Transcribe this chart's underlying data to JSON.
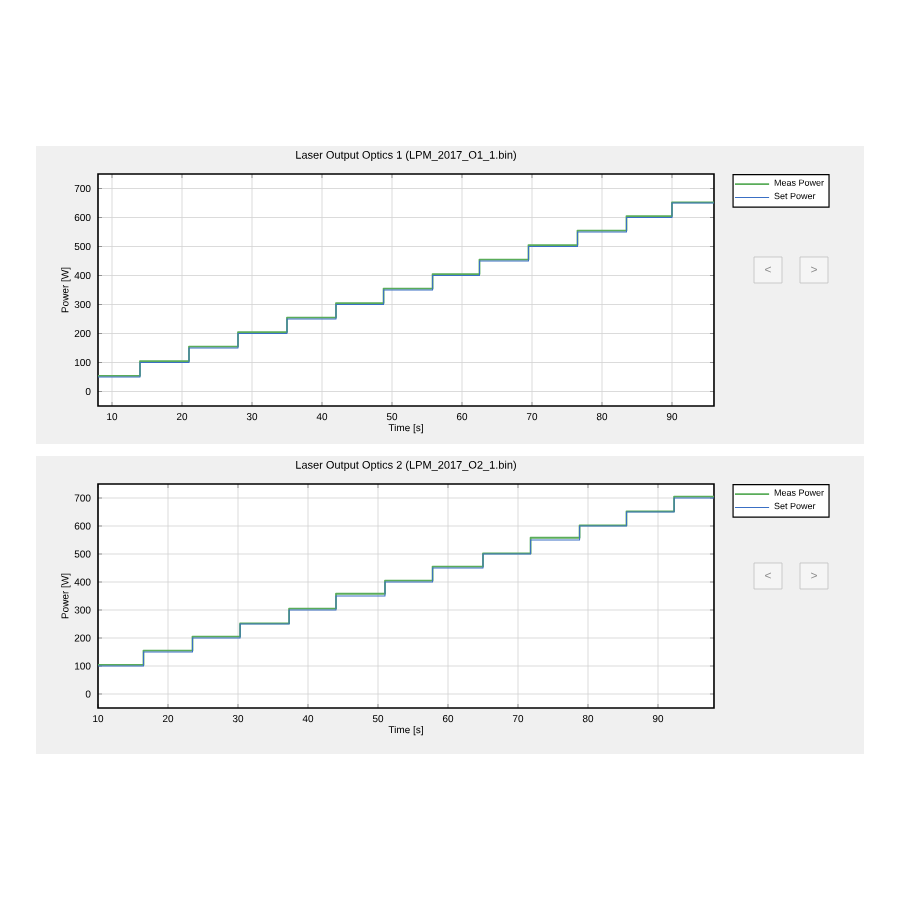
{
  "chart_data": [
    {
      "type": "step",
      "title": "Laser Output Optics 1 (LPM_2017_O1_1.bin)",
      "xlabel": "Time [s]",
      "ylabel": "Power [W]",
      "xlim": [
        8,
        96
      ],
      "ylim": [
        -50,
        750
      ],
      "xticks": [
        10,
        20,
        30,
        40,
        50,
        60,
        70,
        80,
        90
      ],
      "yticks": [
        0,
        100,
        200,
        300,
        400,
        500,
        600,
        700
      ],
      "grid": true,
      "legend": "top right",
      "annotations": [
        "<",
        ">"
      ],
      "series": [
        {
          "name": "Meas Power",
          "color": "#5aac5a",
          "x": [
            8,
            14,
            21,
            28,
            35,
            42,
            48.8,
            55.8,
            62.5,
            69.5,
            76.5,
            83.5,
            90,
            96
          ],
          "values": [
            54,
            105,
            155,
            205,
            255,
            305,
            355,
            405,
            455,
            505,
            555,
            605,
            652,
            652
          ]
        },
        {
          "name": "Set Power",
          "color": "#3a6fc4",
          "x": [
            8,
            14,
            21,
            28,
            35,
            42,
            48.8,
            55.8,
            62.5,
            69.5,
            76.5,
            83.5,
            90,
            96
          ],
          "values": [
            50,
            100,
            150,
            200,
            250,
            300,
            350,
            400,
            450,
            500,
            550,
            600,
            650,
            650
          ]
        }
      ]
    },
    {
      "type": "step",
      "title": "Laser Output Optics 2 (LPM_2017_O2_1.bin)",
      "xlabel": "Time [s]",
      "ylabel": "Power [W]",
      "xlim": [
        10,
        98
      ],
      "ylim": [
        -50,
        750
      ],
      "xticks": [
        10,
        20,
        30,
        40,
        50,
        60,
        70,
        80,
        90
      ],
      "yticks": [
        0,
        100,
        200,
        300,
        400,
        500,
        600,
        700
      ],
      "grid": true,
      "legend": "top right",
      "annotations": [
        "<",
        ">"
      ],
      "series": [
        {
          "name": "Meas Power",
          "color": "#5aac5a",
          "x": [
            10,
            16.5,
            23.5,
            30.3,
            37.3,
            44,
            51,
            57.8,
            65,
            71.8,
            78.8,
            85.5,
            92.3,
            98
          ],
          "values": [
            104,
            155,
            205,
            252,
            305,
            358,
            405,
            455,
            502,
            558,
            602,
            652,
            705,
            705
          ]
        },
        {
          "name": "Set Power",
          "color": "#3a6fc4",
          "x": [
            10,
            16.5,
            23.5,
            30.3,
            37.3,
            44,
            51,
            57.8,
            65,
            71.8,
            78.8,
            85.5,
            92.3,
            98
          ],
          "values": [
            100,
            150,
            200,
            250,
            300,
            350,
            400,
            450,
            500,
            550,
            600,
            650,
            700,
            700
          ]
        }
      ]
    }
  ]
}
